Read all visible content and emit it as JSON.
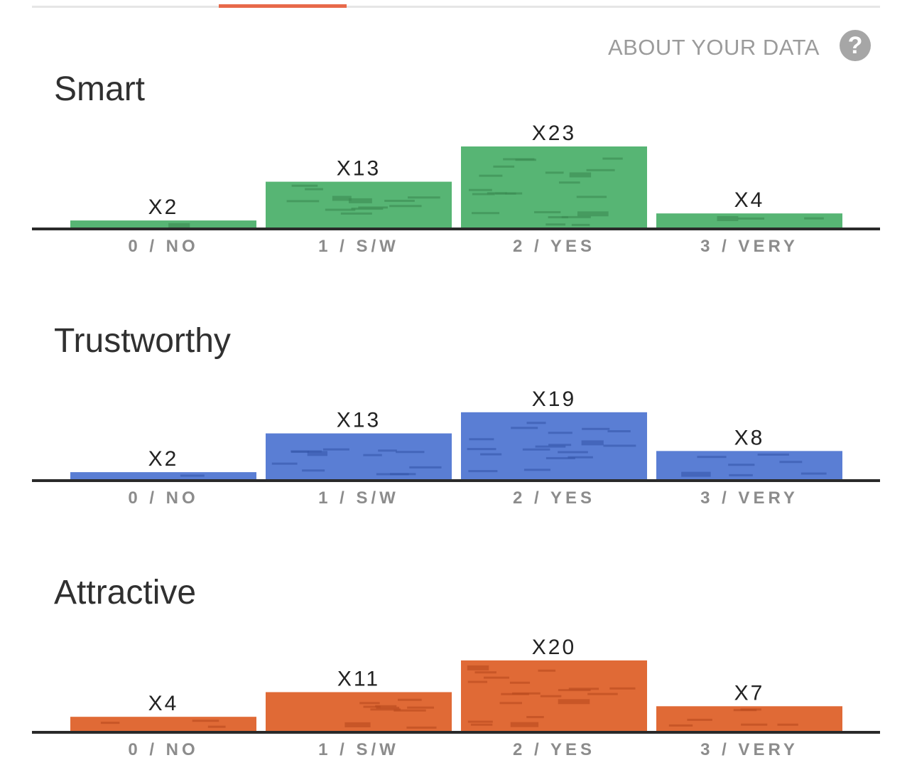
{
  "header": {
    "about_label": "ABOUT YOUR DATA",
    "help_icon": "?"
  },
  "chart_data": [
    {
      "type": "bar",
      "title": "Smart",
      "categories": [
        "0 / NO",
        "1 / S/W",
        "2 / YES",
        "3 / VERY"
      ],
      "values": [
        2,
        13,
        23,
        4
      ],
      "value_labels": [
        "X2",
        "X13",
        "X23",
        "X4"
      ],
      "color": "#57b574",
      "dash_color": "#3a8a52",
      "ylim": [
        0,
        23
      ]
    },
    {
      "type": "bar",
      "title": "Trustworthy",
      "categories": [
        "0 / NO",
        "1 / S/W",
        "2 / YES",
        "3 / VERY"
      ],
      "values": [
        2,
        13,
        19,
        8
      ],
      "value_labels": [
        "X2",
        "X13",
        "X19",
        "X8"
      ],
      "color": "#5a7ed4",
      "dash_color": "#3556aa",
      "ylim": [
        0,
        23
      ]
    },
    {
      "type": "bar",
      "title": "Attractive",
      "categories": [
        "0 / NO",
        "1 / S/W",
        "2 / YES",
        "3 / VERY"
      ],
      "values": [
        4,
        11,
        20,
        7
      ],
      "value_labels": [
        "X4",
        "X11",
        "X20",
        "X7"
      ],
      "color": "#e06a36",
      "dash_color": "#b84a1e",
      "ylim": [
        0,
        23
      ]
    }
  ]
}
